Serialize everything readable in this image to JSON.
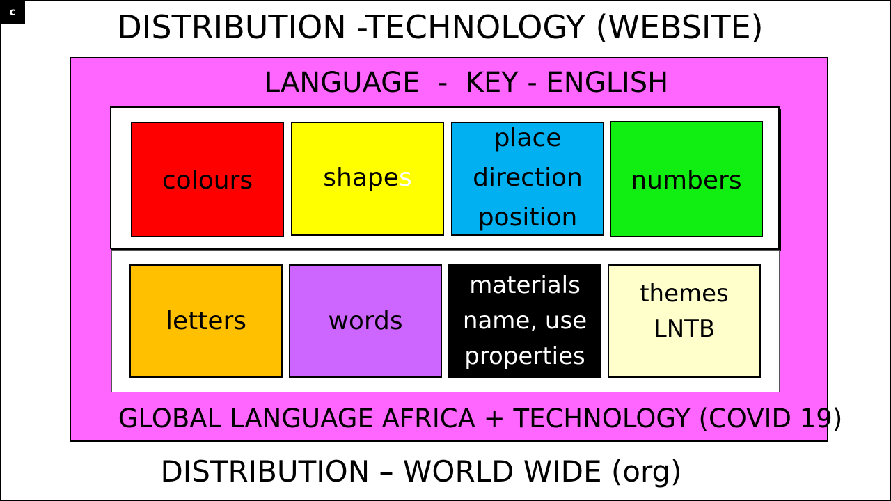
{
  "corner_label": "c",
  "title": "DISTRIBUTION -TECHNOLOGY (WEBSITE)",
  "subtitle": "LANGUAGE  -  KEY - ENGLISH",
  "top_row": [
    {
      "label": "colours",
      "color": "#ff0000"
    },
    {
      "label_main": "shape",
      "label_tail": "s",
      "tail_color": "#ffffff",
      "color": "#ffff00"
    },
    {
      "lines": [
        "place",
        "direction",
        "position"
      ],
      "color": "#00b0f0"
    },
    {
      "label": "numbers",
      "color": "#11ee11"
    }
  ],
  "bottom_row": [
    {
      "label": "letters",
      "color": "#ffc000"
    },
    {
      "label": "words",
      "color": "#cc66ff"
    },
    {
      "lines": [
        "materials",
        "name, use",
        "properties"
      ],
      "color": "#000000",
      "text_color": "#ffffff"
    },
    {
      "lines": [
        "themes",
        "LNTB"
      ],
      "color": "#ffffcc"
    }
  ],
  "footer_inner": "GLOBAL LANGUAGE AFRICA + TECHNOLOGY (COVID 19)",
  "footer_outer": "DISTRIBUTION – WORLD WIDE (org)",
  "colors": {
    "outer_box": "#ff66ff",
    "panel": "#ffffff",
    "border": "#000000"
  }
}
